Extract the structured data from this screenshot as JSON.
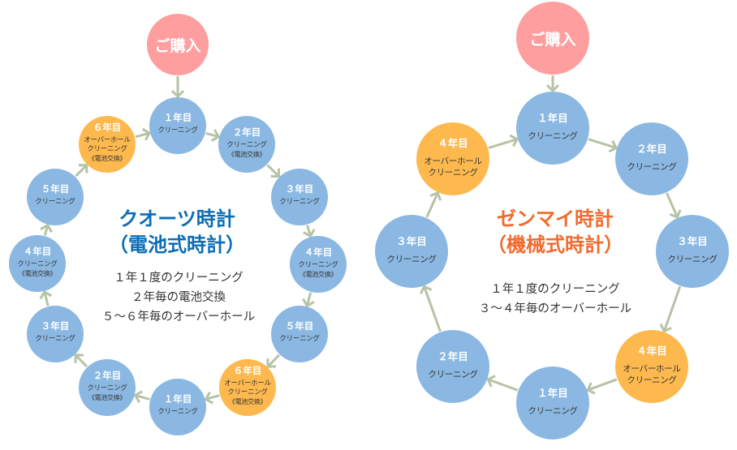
{
  "colors": {
    "blue_node": "#8ab8e2",
    "orange_node": "#fdb94e",
    "purchase": "#fe9e9f",
    "arrow": "#b6c3a5",
    "quartz_title": "#0a6db5",
    "mechanical_title": "#f26a2c"
  },
  "quartz": {
    "purchase": "ご購入",
    "title_line1": "クオーツ時計",
    "title_line2": "（電池式時計）",
    "desc": [
      "１年１度のクリーニング",
      "２年毎の電池交換",
      "５～６年毎のオーバーホール"
    ],
    "nodes": [
      {
        "year": "１年目",
        "lines": [
          "クリーニング"
        ],
        "type": "blue"
      },
      {
        "year": "２年目",
        "lines": [
          "クリーニング",
          "《電池交換》"
        ],
        "type": "blue"
      },
      {
        "year": "３年目",
        "lines": [
          "クリーニング"
        ],
        "type": "blue"
      },
      {
        "year": "４年目",
        "lines": [
          "クリーニング",
          "《電池交換》"
        ],
        "type": "blue"
      },
      {
        "year": "５年目",
        "lines": [
          "クリーニング"
        ],
        "type": "blue"
      },
      {
        "year": "６年目",
        "lines": [
          "オーバーホール",
          "クリーニング",
          "《電池交換》"
        ],
        "type": "orange"
      },
      {
        "year": "１年目",
        "lines": [
          "クリーニング"
        ],
        "type": "blue"
      },
      {
        "year": "２年目",
        "lines": [
          "クリーニング",
          "《電池交換》"
        ],
        "type": "blue"
      },
      {
        "year": "３年目",
        "lines": [
          "クリーニング"
        ],
        "type": "blue"
      },
      {
        "year": "４年目",
        "lines": [
          "クリーニング",
          "《電池交換》"
        ],
        "type": "blue"
      },
      {
        "year": "５年目",
        "lines": [
          "クリーニング"
        ],
        "type": "blue"
      },
      {
        "year": "６年目",
        "lines": [
          "オーバーホール",
          "クリーニング",
          "《電池交換》"
        ],
        "type": "orange"
      }
    ]
  },
  "mechanical": {
    "purchase": "ご購入",
    "title_line1": "ゼンマイ時計",
    "title_line2": "（機械式時計）",
    "desc": [
      "１年１度のクリーニング",
      "３～４年毎のオーバーホール"
    ],
    "nodes": [
      {
        "year": "１年目",
        "lines": [
          "クリーニング"
        ],
        "type": "blue"
      },
      {
        "year": "２年目",
        "lines": [
          "クリーニング"
        ],
        "type": "blue"
      },
      {
        "year": "３年目",
        "lines": [
          "クリーニング"
        ],
        "type": "blue"
      },
      {
        "year": "４年目",
        "lines": [
          "オーバーホール",
          "クリーニング"
        ],
        "type": "orange"
      },
      {
        "year": "１年目",
        "lines": [
          "クリーニング"
        ],
        "type": "blue"
      },
      {
        "year": "２年目",
        "lines": [
          "クリーニング"
        ],
        "type": "blue"
      },
      {
        "year": "３年目",
        "lines": [
          "クリーニング"
        ],
        "type": "blue"
      },
      {
        "year": "４年目",
        "lines": [
          "オーバーホール",
          "クリーニング"
        ],
        "type": "orange"
      }
    ]
  }
}
